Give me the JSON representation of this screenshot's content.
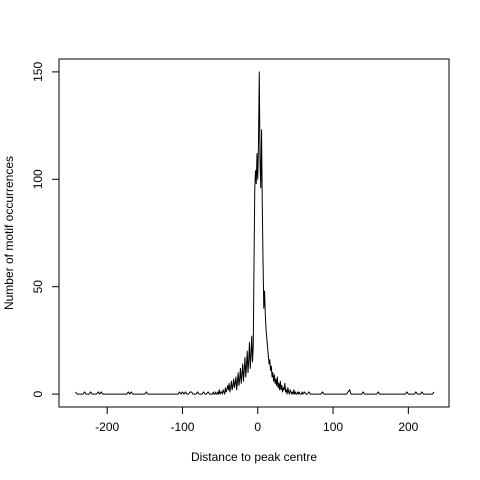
{
  "chart_data": {
    "type": "line",
    "xlabel": "Distance to peak centre",
    "ylabel": "Number of motif occurrences",
    "color": "#000000",
    "xlim": [
      -264,
      254
    ],
    "ylim": [
      -6,
      156
    ],
    "xticks": [
      -200,
      -100,
      0,
      100,
      200
    ],
    "yticks": [
      0,
      50,
      100,
      150
    ],
    "x": [
      -242,
      -240,
      -238,
      -236,
      -234,
      -232,
      -230,
      -228,
      -226,
      -224,
      -222,
      -220,
      -218,
      -216,
      -214,
      -212,
      -210,
      -208,
      -206,
      -204,
      -202,
      -200,
      -198,
      -196,
      -194,
      -192,
      -190,
      -188,
      -186,
      -184,
      -182,
      -180,
      -178,
      -176,
      -174,
      -172,
      -170,
      -168,
      -166,
      -164,
      -162,
      -160,
      -158,
      -156,
      -154,
      -152,
      -150,
      -148,
      -146,
      -144,
      -142,
      -140,
      -138,
      -136,
      -134,
      -132,
      -130,
      -128,
      -126,
      -124,
      -122,
      -120,
      -118,
      -116,
      -114,
      -112,
      -110,
      -108,
      -106,
      -104,
      -102,
      -100,
      -98,
      -96,
      -94,
      -92,
      -90,
      -88,
      -86,
      -84,
      -82,
      -80,
      -78,
      -76,
      -74,
      -72,
      -70,
      -68,
      -66,
      -64,
      -62,
      -60,
      -59,
      -58,
      -57,
      -56,
      -55,
      -54,
      -53,
      -52,
      -51,
      -50,
      -49,
      -48,
      -47,
      -46,
      -45,
      -44,
      -43,
      -42,
      -41,
      -40,
      -39,
      -38,
      -37,
      -36,
      -35,
      -34,
      -33,
      -32,
      -31,
      -30,
      -29,
      -28,
      -27,
      -26,
      -25,
      -24,
      -23,
      -22,
      -21,
      -20,
      -19,
      -18,
      -17,
      -16,
      -15,
      -14,
      -13,
      -12,
      -11,
      -10,
      -9,
      -8,
      -7,
      -6,
      -5,
      -4,
      -3,
      -2,
      -1,
      0,
      1,
      2,
      3,
      4,
      5,
      6,
      7,
      8,
      9,
      10,
      11,
      12,
      13,
      14,
      15,
      16,
      17,
      18,
      19,
      20,
      21,
      22,
      23,
      24,
      25,
      26,
      27,
      28,
      29,
      30,
      31,
      32,
      33,
      34,
      35,
      36,
      37,
      38,
      39,
      40,
      41,
      42,
      43,
      44,
      45,
      46,
      47,
      48,
      49,
      50,
      51,
      52,
      53,
      54,
      55,
      56,
      57,
      58,
      59,
      60,
      62,
      64,
      66,
      68,
      70,
      72,
      74,
      76,
      78,
      80,
      82,
      84,
      86,
      88,
      90,
      92,
      94,
      96,
      98,
      100,
      102,
      104,
      106,
      108,
      110,
      112,
      114,
      116,
      118,
      120,
      122,
      124,
      126,
      128,
      130,
      132,
      134,
      136,
      138,
      140,
      142,
      144,
      146,
      148,
      150,
      152,
      154,
      156,
      158,
      160,
      162,
      164,
      166,
      168,
      170,
      172,
      174,
      176,
      178,
      180,
      182,
      184,
      186,
      188,
      190,
      192,
      194,
      196,
      198,
      200,
      202,
      204,
      206,
      208,
      210,
      212,
      214,
      216,
      218,
      220,
      222,
      224,
      226,
      228,
      230,
      232,
      234
    ],
    "values": [
      1,
      0,
      0,
      0,
      0,
      0,
      1,
      0,
      0,
      0,
      1,
      0,
      0,
      0,
      0,
      1,
      0,
      1,
      0,
      0,
      0,
      0,
      0,
      0,
      0,
      0,
      0,
      0,
      0,
      0,
      0,
      0,
      0,
      0,
      0,
      1,
      0,
      1,
      0,
      0,
      0,
      0,
      0,
      0,
      0,
      0,
      0,
      1,
      0,
      0,
      0,
      0,
      0,
      0,
      0,
      0,
      0,
      0,
      0,
      0,
      0,
      0,
      0,
      0,
      0,
      0,
      0,
      0,
      0,
      1,
      0,
      1,
      0,
      1,
      0,
      0,
      1,
      1,
      0,
      0,
      0,
      1,
      0,
      0,
      0,
      1,
      0,
      0,
      1,
      0,
      0,
      0,
      1,
      0,
      0,
      1,
      0,
      0,
      1,
      0,
      2,
      0,
      1,
      1,
      0,
      2,
      1,
      0,
      3,
      1,
      2,
      4,
      2,
      5,
      1,
      3,
      6,
      2,
      4,
      7,
      3,
      5,
      8,
      2,
      6,
      10,
      4,
      7,
      12,
      5,
      9,
      14,
      6,
      11,
      17,
      8,
      13,
      20,
      10,
      16,
      24,
      12,
      18,
      27,
      15,
      22,
      60,
      95,
      104,
      98,
      112,
      100,
      118,
      150,
      108,
      96,
      123,
      88,
      62,
      40,
      48,
      37,
      30,
      26,
      22,
      18,
      14,
      16,
      11,
      13,
      8,
      10,
      6,
      9,
      5,
      7,
      4,
      8,
      3,
      5,
      2,
      6,
      2,
      4,
      1,
      3,
      2,
      5,
      1,
      2,
      0,
      3,
      1,
      0,
      2,
      1,
      0,
      1,
      0,
      2,
      0,
      1,
      0,
      0,
      1,
      0,
      1,
      0,
      0,
      0,
      1,
      0,
      1,
      0,
      0,
      1,
      0,
      0,
      0,
      0,
      0,
      0,
      0,
      0,
      1,
      0,
      0,
      0,
      0,
      0,
      0,
      0,
      0,
      0,
      0,
      0,
      0,
      0,
      0,
      0,
      0,
      1,
      2,
      0,
      0,
      0,
      0,
      0,
      0,
      0,
      0,
      1,
      0,
      0,
      0,
      0,
      0,
      0,
      0,
      0,
      0,
      1,
      0,
      0,
      0,
      0,
      0,
      0,
      0,
      0,
      0,
      0,
      0,
      0,
      0,
      0,
      0,
      0,
      0,
      0,
      1,
      0,
      0,
      0,
      0,
      0,
      1,
      0,
      0,
      0,
      1,
      0,
      0,
      0,
      0,
      0,
      0,
      0,
      1
    ]
  }
}
